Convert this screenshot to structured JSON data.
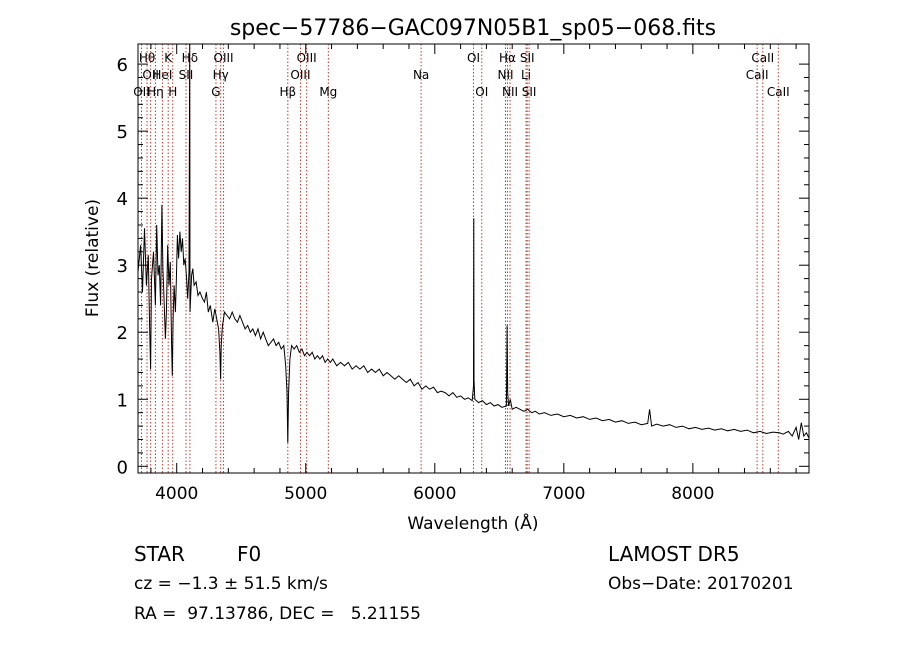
{
  "chart_data": {
    "type": "line",
    "title": "spec−57786−GAC097N05B1_sp05−068.fits",
    "xlabel": "Wavelength (Å)",
    "ylabel": "Flux (relative)",
    "xlim": [
      3700,
      8900
    ],
    "ylim": [
      -0.1,
      6.3
    ],
    "xticks": [
      4000,
      5000,
      6000,
      7000,
      8000
    ],
    "yticks": [
      0,
      1,
      2,
      3,
      4,
      5,
      6
    ],
    "grid": false,
    "series": [
      {
        "values": [
          [
            3700,
            2.9
          ],
          [
            3720,
            3.3
          ],
          [
            3735,
            2.6
          ],
          [
            3750,
            3.55
          ],
          [
            3765,
            2.7
          ],
          [
            3780,
            3.15
          ],
          [
            3790,
            2.1
          ],
          [
            3798,
            1.45
          ],
          [
            3805,
            2.8
          ],
          [
            3820,
            3.2
          ],
          [
            3835,
            2.4
          ],
          [
            3845,
            3.6
          ],
          [
            3855,
            2.85
          ],
          [
            3865,
            3.0
          ],
          [
            3875,
            2.4
          ],
          [
            3885,
            3.9
          ],
          [
            3893,
            2.95
          ],
          [
            3900,
            2.6
          ],
          [
            3912,
            1.9
          ],
          [
            3920,
            2.3
          ],
          [
            3930,
            3.3
          ],
          [
            3940,
            2.7
          ],
          [
            3950,
            3.05
          ],
          [
            3960,
            1.8
          ],
          [
            3966,
            1.35
          ],
          [
            3972,
            2.2
          ],
          [
            3980,
            2.7
          ],
          [
            3990,
            2.3
          ],
          [
            3997,
            2.75
          ],
          [
            4005,
            3.45
          ],
          [
            4015,
            3.1
          ],
          [
            4025,
            3.5
          ],
          [
            4035,
            3.2
          ],
          [
            4045,
            3.4
          ],
          [
            4055,
            3.0
          ],
          [
            4065,
            3.1
          ],
          [
            4075,
            2.85
          ],
          [
            4085,
            2.5
          ],
          [
            4095,
            2.9
          ],
          [
            4101,
            6.3
          ],
          [
            4103,
            2.3
          ],
          [
            4115,
            2.85
          ],
          [
            4125,
            2.95
          ],
          [
            4135,
            2.7
          ],
          [
            4150,
            2.75
          ],
          [
            4165,
            2.55
          ],
          [
            4180,
            2.6
          ],
          [
            4200,
            2.5
          ],
          [
            4215,
            2.45
          ],
          [
            4230,
            2.6
          ],
          [
            4245,
            2.3
          ],
          [
            4260,
            2.4
          ],
          [
            4280,
            2.15
          ],
          [
            4295,
            2.35
          ],
          [
            4310,
            2.2
          ],
          [
            4325,
            2.05
          ],
          [
            4335,
            1.7
          ],
          [
            4340,
            1.3
          ],
          [
            4345,
            1.8
          ],
          [
            4355,
            2.1
          ],
          [
            4370,
            2.3
          ],
          [
            4390,
            2.25
          ],
          [
            4410,
            2.2
          ],
          [
            4430,
            2.3
          ],
          [
            4450,
            2.2
          ],
          [
            4470,
            2.15
          ],
          [
            4490,
            2.25
          ],
          [
            4510,
            2.15
          ],
          [
            4530,
            2.05
          ],
          [
            4550,
            2.1
          ],
          [
            4570,
            2.0
          ],
          [
            4590,
            2.05
          ],
          [
            4610,
            1.95
          ],
          [
            4630,
            2.05
          ],
          [
            4650,
            1.9
          ],
          [
            4670,
            2.0
          ],
          [
            4690,
            1.9
          ],
          [
            4710,
            1.8
          ],
          [
            4730,
            1.85
          ],
          [
            4750,
            1.9
          ],
          [
            4770,
            1.8
          ],
          [
            4790,
            1.85
          ],
          [
            4810,
            1.75
          ],
          [
            4830,
            1.8
          ],
          [
            4845,
            1.5
          ],
          [
            4855,
            1.1
          ],
          [
            4861,
            0.35
          ],
          [
            4867,
            1.1
          ],
          [
            4877,
            1.6
          ],
          [
            4890,
            1.8
          ],
          [
            4910,
            1.75
          ],
          [
            4930,
            1.8
          ],
          [
            4950,
            1.7
          ],
          [
            4970,
            1.75
          ],
          [
            4990,
            1.65
          ],
          [
            5010,
            1.7
          ],
          [
            5030,
            1.65
          ],
          [
            5050,
            1.7
          ],
          [
            5070,
            1.6
          ],
          [
            5090,
            1.65
          ],
          [
            5110,
            1.6
          ],
          [
            5130,
            1.65
          ],
          [
            5150,
            1.55
          ],
          [
            5170,
            1.6
          ],
          [
            5190,
            1.55
          ],
          [
            5210,
            1.6
          ],
          [
            5240,
            1.5
          ],
          [
            5270,
            1.55
          ],
          [
            5300,
            1.5
          ],
          [
            5330,
            1.55
          ],
          [
            5360,
            1.45
          ],
          [
            5390,
            1.5
          ],
          [
            5420,
            1.45
          ],
          [
            5450,
            1.5
          ],
          [
            5480,
            1.4
          ],
          [
            5510,
            1.45
          ],
          [
            5540,
            1.4
          ],
          [
            5570,
            1.45
          ],
          [
            5600,
            1.35
          ],
          [
            5630,
            1.4
          ],
          [
            5660,
            1.35
          ],
          [
            5690,
            1.3
          ],
          [
            5720,
            1.35
          ],
          [
            5750,
            1.3
          ],
          [
            5780,
            1.25
          ],
          [
            5810,
            1.3
          ],
          [
            5840,
            1.2
          ],
          [
            5870,
            1.25
          ],
          [
            5900,
            1.15
          ],
          [
            5930,
            1.2
          ],
          [
            5960,
            1.15
          ],
          [
            5990,
            1.18
          ],
          [
            6020,
            1.1
          ],
          [
            6050,
            1.12
          ],
          [
            6080,
            1.1
          ],
          [
            6110,
            1.05
          ],
          [
            6140,
            1.1
          ],
          [
            6170,
            1.03
          ],
          [
            6200,
            1.05
          ],
          [
            6230,
            1.0
          ],
          [
            6260,
            1.02
          ],
          [
            6290,
            0.98
          ],
          [
            6300,
            1.2
          ],
          [
            6302,
            3.7
          ],
          [
            6304,
            1.3
          ],
          [
            6310,
            1.0
          ],
          [
            6340,
            0.95
          ],
          [
            6370,
            0.98
          ],
          [
            6400,
            0.92
          ],
          [
            6430,
            0.95
          ],
          [
            6460,
            0.9
          ],
          [
            6490,
            0.92
          ],
          [
            6520,
            0.88
          ],
          [
            6555,
            0.9
          ],
          [
            6560,
            2.1
          ],
          [
            6565,
            1.1
          ],
          [
            6572,
            0.9
          ],
          [
            6585,
            1.0
          ],
          [
            6600,
            0.85
          ],
          [
            6630,
            0.88
          ],
          [
            6660,
            0.85
          ],
          [
            6690,
            0.82
          ],
          [
            6720,
            0.85
          ],
          [
            6750,
            0.8
          ],
          [
            6780,
            0.82
          ],
          [
            6810,
            0.78
          ],
          [
            6850,
            0.8
          ],
          [
            6900,
            0.76
          ],
          [
            6950,
            0.78
          ],
          [
            7000,
            0.74
          ],
          [
            7050,
            0.76
          ],
          [
            7100,
            0.72
          ],
          [
            7150,
            0.74
          ],
          [
            7200,
            0.7
          ],
          [
            7250,
            0.72
          ],
          [
            7300,
            0.68
          ],
          [
            7350,
            0.7
          ],
          [
            7400,
            0.66
          ],
          [
            7450,
            0.68
          ],
          [
            7500,
            0.64
          ],
          [
            7550,
            0.66
          ],
          [
            7600,
            0.62
          ],
          [
            7650,
            0.64
          ],
          [
            7665,
            0.85
          ],
          [
            7680,
            0.6
          ],
          [
            7720,
            0.63
          ],
          [
            7770,
            0.6
          ],
          [
            7820,
            0.62
          ],
          [
            7870,
            0.58
          ],
          [
            7920,
            0.6
          ],
          [
            7970,
            0.56
          ],
          [
            8020,
            0.58
          ],
          [
            8070,
            0.55
          ],
          [
            8120,
            0.57
          ],
          [
            8170,
            0.54
          ],
          [
            8220,
            0.56
          ],
          [
            8270,
            0.53
          ],
          [
            8320,
            0.55
          ],
          [
            8370,
            0.52
          ],
          [
            8420,
            0.54
          ],
          [
            8470,
            0.5
          ],
          [
            8520,
            0.52
          ],
          [
            8570,
            0.49
          ],
          [
            8620,
            0.51
          ],
          [
            8670,
            0.5
          ],
          [
            8700,
            0.48
          ],
          [
            8740,
            0.52
          ],
          [
            8770,
            0.45
          ],
          [
            8800,
            0.58
          ],
          [
            8820,
            0.4
          ],
          [
            8840,
            0.65
          ],
          [
            8860,
            0.45
          ],
          [
            8880,
            0.5
          ],
          [
            8900,
            0.42
          ]
        ]
      }
    ],
    "line_color": "#000000",
    "reference_lines": {
      "color": "#c0392b",
      "style": "dotted",
      "lines": [
        {
          "x": 3727,
          "row": 2,
          "label": "OII"
        },
        {
          "x": 3770,
          "row": 0,
          "label": "Hθ"
        },
        {
          "x": 3798,
          "row": 1,
          "label": "OII"
        },
        {
          "x": 3835,
          "row": 2,
          "label": "Hη"
        },
        {
          "x": 3889,
          "row": 1,
          "label": "HeI"
        },
        {
          "x": 3934,
          "row": 0,
          "label": "K"
        },
        {
          "x": 3969,
          "row": 2,
          "label": "H"
        },
        {
          "x": 4072,
          "row": 1,
          "label": "SII"
        },
        {
          "x": 4102,
          "row": 0,
          "label": "Hδ"
        },
        {
          "x": 4304,
          "row": 2,
          "label": "G"
        },
        {
          "x": 4341,
          "row": 1,
          "label": "Hγ"
        },
        {
          "x": 4363,
          "row": 0,
          "label": "OIII"
        },
        {
          "x": 4861,
          "row": 2,
          "label": "Hβ"
        },
        {
          "x": 4959,
          "row": 1,
          "label": "OIII"
        },
        {
          "x": 5007,
          "row": 0,
          "label": "OIII"
        },
        {
          "x": 5175,
          "row": 2,
          "label": "Mg"
        },
        {
          "x": 5894,
          "row": 1,
          "label": "Na"
        },
        {
          "x": 6300,
          "row": 0,
          "label": "OI"
        },
        {
          "x": 6364,
          "row": 2,
          "label": "OI"
        },
        {
          "x": 6548,
          "row": 1,
          "label": "NII"
        },
        {
          "x": 6563,
          "row": 0,
          "label": "Hα"
        },
        {
          "x": 6583,
          "row": 2,
          "label": "NII"
        },
        {
          "x": 6707,
          "row": 1,
          "label": "Li"
        },
        {
          "x": 6716,
          "row": 0,
          "label": "SII"
        },
        {
          "x": 6731,
          "row": 2,
          "label": "SII"
        },
        {
          "x": 8498,
          "row": 1,
          "label": "CaII"
        },
        {
          "x": 8542,
          "row": 0,
          "label": "CaII"
        },
        {
          "x": 8662,
          "row": 2,
          "label": "CaII"
        }
      ]
    }
  },
  "info": {
    "class_label": "STAR",
    "subclass": "F0",
    "survey": "LAMOST DR5",
    "cz": "cz = −1.3 ± 51.5 km/s",
    "obs_date": "Obs−Date: 20170201",
    "coords": "RA =  97.13786, DEC =   5.21155"
  }
}
